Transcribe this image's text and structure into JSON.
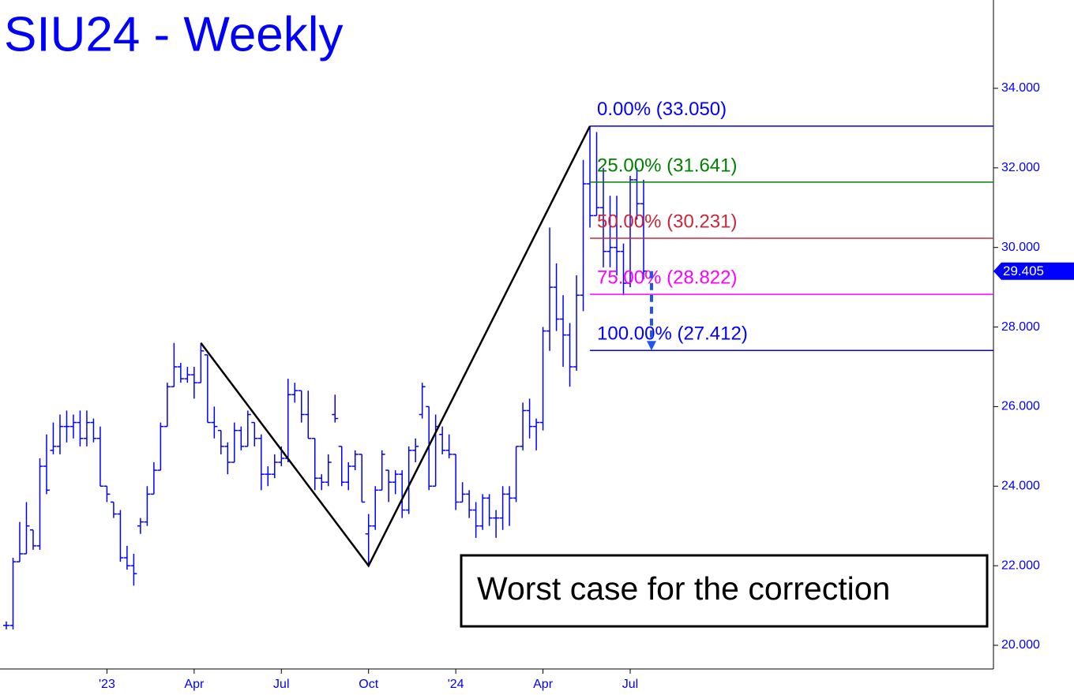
{
  "chart_data": {
    "type": "ohlc",
    "title": "SIU24 - Weekly",
    "annotation": "Worst case for the correction",
    "color": "#0000ff",
    "categories": [
      null,
      null,
      null,
      null,
      null,
      null,
      null,
      null,
      null,
      null,
      null,
      null,
      null,
      null,
      null,
      "'23",
      null,
      null,
      null,
      null,
      null,
      null,
      null,
      null,
      null,
      null,
      null,
      null,
      "Apr",
      null,
      null,
      null,
      null,
      null,
      null,
      null,
      null,
      null,
      null,
      null,
      null,
      "Jul",
      null,
      null,
      null,
      null,
      null,
      null,
      null,
      null,
      null,
      null,
      null,
      null,
      "Oct",
      null,
      null,
      null,
      null,
      null,
      null,
      null,
      null,
      null,
      null,
      null,
      null,
      "'24",
      null,
      null,
      null,
      null,
      null,
      null,
      null,
      null,
      null,
      null,
      null,
      null,
      "Apr",
      null,
      null,
      null,
      null,
      null,
      null,
      null,
      null,
      null,
      null,
      null,
      null,
      "Jul",
      null,
      null
    ],
    "open": [
      20.5,
      20.5,
      22.1,
      22.3,
      22.9,
      22.5,
      24.5,
      24.9,
      25.0,
      25.5,
      25.5,
      25.6,
      25.2,
      25.6,
      25.2,
      24.0,
      23.6,
      23.3,
      22.2,
      22.0,
      23.0,
      23.1,
      23.8,
      24.4,
      25.5,
      26.5,
      27.0,
      26.7,
      26.8,
      26.6,
      27.3,
      25.6,
      25.4,
      25.0,
      24.6,
      25.4,
      25.0,
      25.6,
      25.2,
      24.3,
      24.3,
      24.6,
      24.7,
      26.3,
      26.4,
      25.8,
      25.2,
      24.2,
      24.1,
      25.8,
      25.0,
      24.1,
      24.5,
      24.8,
      22.8,
      23.0,
      23.9,
      24.4,
      24.1,
      24.3,
      23.4,
      24.9,
      25.8,
      26.0,
      24.0,
      25.3,
      24.9,
      24.8,
      23.6,
      23.8,
      23.4,
      23.0,
      23.7,
      23.2,
      23.2,
      23.8,
      23.7,
      25.0,
      25.9,
      25.5,
      25.6,
      27.9,
      29.0,
      28.2,
      27.8,
      27.0,
      28.8,
      31.6,
      30.8,
      31.0,
      29.9,
      30.0,
      29.9,
      29.1,
      31.7,
      31.1
    ],
    "high": [
      20.6,
      22.2,
      23.1,
      23.6,
      22.9,
      24.7,
      25.3,
      25.6,
      25.8,
      25.9,
      25.8,
      25.9,
      25.9,
      25.7,
      25.5,
      24.0,
      23.6,
      23.4,
      22.5,
      22.3,
      23.2,
      24.0,
      24.6,
      25.6,
      26.6,
      27.6,
      27.1,
      27.0,
      27.0,
      27.6,
      27.3,
      26.0,
      25.4,
      25.1,
      25.6,
      25.5,
      25.9,
      25.6,
      25.3,
      24.5,
      24.8,
      25.0,
      26.7,
      26.6,
      26.4,
      26.4,
      25.2,
      24.3,
      24.8,
      26.3,
      25.0,
      24.6,
      24.9,
      24.8,
      23.3,
      24.0,
      24.9,
      24.4,
      24.4,
      24.4,
      25.0,
      25.2,
      26.6,
      26.0,
      25.8,
      25.5,
      25.3,
      24.8,
      24.1,
      23.9,
      23.6,
      23.8,
      23.8,
      23.4,
      24.0,
      24.0,
      25.0,
      26.1,
      26.2,
      25.7,
      28.0,
      30.5,
      29.6,
      28.8,
      28.1,
      29.3,
      32.2,
      33.05,
      32.9,
      32.0,
      31.3,
      31.3,
      30.1,
      31.8,
      32.0,
      31.7
    ],
    "low": [
      20.4,
      20.4,
      22.1,
      22.3,
      22.4,
      22.4,
      23.8,
      24.8,
      24.8,
      25.1,
      25.2,
      25.0,
      25.0,
      25.1,
      24.0,
      23.6,
      23.2,
      22.1,
      21.9,
      21.5,
      22.8,
      23.0,
      23.8,
      24.4,
      25.5,
      26.5,
      26.6,
      26.6,
      26.2,
      26.6,
      25.6,
      25.2,
      24.8,
      24.3,
      24.6,
      24.9,
      25.0,
      25.0,
      23.9,
      24.0,
      24.2,
      24.5,
      24.6,
      26.1,
      25.6,
      25.2,
      23.9,
      23.9,
      24.0,
      25.6,
      24.0,
      23.9,
      24.4,
      23.6,
      22.0,
      22.9,
      23.9,
      23.6,
      23.8,
      23.2,
      23.3,
      24.6,
      25.7,
      23.9,
      24.0,
      24.8,
      24.7,
      23.4,
      23.6,
      23.2,
      22.7,
      22.9,
      23.0,
      22.7,
      22.9,
      23.0,
      23.6,
      24.9,
      25.2,
      24.9,
      25.4,
      27.4,
      27.9,
      27.0,
      26.5,
      26.9,
      28.4,
      30.5,
      30.8,
      29.5,
      29.5,
      29.3,
      28.8,
      29.0,
      30.7,
      29.2
    ],
    "close": [
      20.5,
      22.1,
      22.3,
      23.0,
      22.5,
      24.5,
      23.9,
      25.0,
      25.5,
      25.5,
      25.6,
      25.2,
      25.6,
      25.2,
      24.0,
      23.8,
      23.3,
      22.2,
      22.0,
      21.8,
      23.1,
      23.8,
      24.4,
      25.5,
      26.5,
      27.0,
      26.7,
      26.8,
      26.6,
      27.4,
      25.6,
      25.5,
      25.0,
      24.6,
      25.4,
      25.0,
      25.8,
      25.2,
      24.3,
      24.3,
      24.6,
      24.7,
      26.3,
      26.4,
      25.8,
      25.2,
      24.2,
      24.1,
      24.6,
      25.7,
      24.1,
      24.5,
      24.8,
      23.6,
      23.0,
      23.9,
      24.8,
      24.1,
      24.3,
      23.4,
      24.9,
      25.0,
      26.5,
      24.0,
      25.5,
      24.9,
      24.8,
      23.6,
      23.8,
      23.4,
      23.0,
      23.7,
      23.2,
      23.2,
      23.8,
      23.7,
      25.0,
      25.9,
      25.5,
      25.6,
      27.9,
      29.0,
      28.2,
      27.8,
      27.0,
      28.8,
      31.6,
      30.8,
      31.0,
      29.9,
      30.0,
      29.9,
      29.1,
      31.7,
      31.1,
      29.405
    ],
    "levels": [
      {
        "label": "0.00% (33.050)",
        "value": 33.05,
        "color": "#0000ff"
      },
      {
        "label": "25.00% (31.641)",
        "value": 31.641,
        "color": "#008000"
      },
      {
        "label": "50.00% (30.231)",
        "value": 30.231,
        "color": "#c8283c"
      },
      {
        "label": "75.00% (28.822)",
        "value": 28.822,
        "color": "#ff00ff"
      },
      {
        "label": "100.00% (27.412)",
        "value": 27.412,
        "color": "#0000ff"
      }
    ],
    "ylim": [
      19.405,
      36.22
    ],
    "yticks": [
      {
        "value": 20,
        "label": "20.000"
      },
      {
        "value": 22,
        "label": "22.000"
      },
      {
        "value": 24,
        "label": "24.000"
      },
      {
        "value": 26,
        "label": "26.000"
      },
      {
        "value": 28,
        "label": "28.000"
      },
      {
        "value": 30,
        "label": "30.000"
      },
      {
        "value": 32,
        "label": "32.000"
      },
      {
        "value": 34,
        "label": "34.000"
      }
    ]
  }
}
